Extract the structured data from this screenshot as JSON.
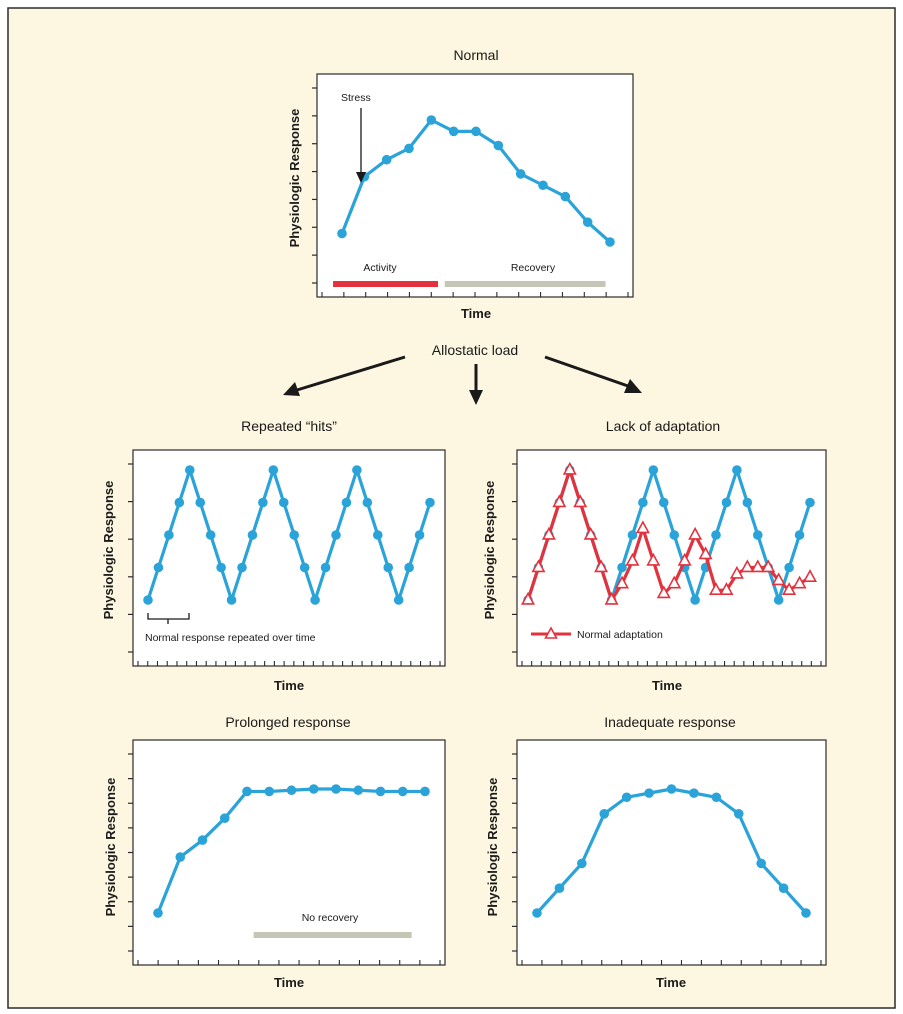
{
  "colors": {
    "background": "#fdf6e0",
    "frame": "#2b2b2b",
    "line_blue": "#2aa3d8",
    "line_red": "#e3323d",
    "bar_activity": "#e3323d",
    "bar_recovery": "#c5c6b6"
  },
  "labels": {
    "allostatic_load": "Allostatic load"
  },
  "chart_data": [
    {
      "id": "normal",
      "type": "line",
      "title": "Normal",
      "xlabel": "Time",
      "ylabel": "Physiologic Response",
      "ylim": [
        0,
        7
      ],
      "xlim": [
        -1,
        13
      ],
      "grid": false,
      "series": [
        {
          "x": [
            0,
            1,
            2,
            3,
            4,
            5,
            6,
            7,
            8,
            9,
            10,
            11,
            12
          ],
          "values": [
            1.0,
            3.0,
            3.6,
            4.0,
            5.0,
            4.6,
            4.6,
            4.1,
            3.1,
            2.7,
            2.3,
            1.4,
            0.7
          ]
        }
      ],
      "annotations": [
        "Stress"
      ],
      "bars": [
        {
          "label": "Activity",
          "from": -0.4,
          "to": 4.3,
          "color": "#e3323d"
        },
        {
          "label": "Recovery",
          "from": 4.6,
          "to": 11.8,
          "color": "#c5c6b6"
        }
      ]
    },
    {
      "id": "repeated-hits",
      "type": "line",
      "title": "Repeated “hits”",
      "xlabel": "Time",
      "ylabel": "Physiologic Response",
      "ylim": [
        0,
        5.5
      ],
      "xlim": [
        -0.6,
        28
      ],
      "grid": false,
      "series": [
        {
          "x": [
            0,
            1,
            2,
            3,
            4,
            5,
            6,
            7,
            8,
            9,
            10,
            11,
            12,
            13,
            14,
            15,
            16,
            17,
            18,
            19,
            20,
            21,
            22,
            23,
            24,
            25,
            26,
            27
          ],
          "values": [
            1,
            2,
            3,
            4,
            5,
            4,
            3,
            2,
            1,
            2,
            3,
            4,
            5,
            4,
            3,
            2,
            1,
            2,
            3,
            4,
            5,
            4,
            3,
            2,
            1,
            2,
            3,
            4
          ]
        }
      ],
      "annotations": [
        "Normal response repeated over time"
      ]
    },
    {
      "id": "lack-of-adaptation",
      "type": "line",
      "title": "Lack of adaptation",
      "xlabel": "Time",
      "ylabel": "Physiologic Response",
      "ylim": [
        0,
        5.5
      ],
      "xlim": [
        -0.6,
        28
      ],
      "grid": false,
      "series": [
        {
          "x": [
            0,
            1,
            2,
            3,
            4,
            5,
            6,
            7,
            8,
            9,
            10,
            11,
            12,
            13,
            14,
            15,
            16,
            17,
            18,
            19,
            20,
            21,
            22,
            23,
            24,
            25,
            26,
            27
          ],
          "values": [
            1,
            2,
            3,
            4,
            5,
            4,
            3,
            2,
            1,
            2,
            3,
            4,
            5,
            4,
            3,
            2,
            1,
            2,
            3,
            4,
            5,
            4,
            3,
            2,
            1,
            2,
            3,
            4
          ]
        },
        {
          "name": "Normal adaptation",
          "x": [
            0,
            1,
            2,
            3,
            4,
            5,
            6,
            7,
            8,
            9,
            10,
            11,
            12,
            13,
            14,
            15,
            16,
            17,
            18,
            19,
            20,
            21,
            22,
            23,
            24,
            25,
            26,
            27
          ],
          "values": [
            1,
            2,
            3,
            4,
            5,
            4,
            3,
            2,
            1,
            1.5,
            2.2,
            3.2,
            2.2,
            1.2,
            1.5,
            2.2,
            3.0,
            2.4,
            1.3,
            1.3,
            1.8,
            2.0,
            2.0,
            2.0,
            1.6,
            1.3,
            1.5,
            1.7
          ]
        }
      ],
      "legend": "bottom-left"
    },
    {
      "id": "prolonged-response",
      "type": "line",
      "title": "Prolonged response",
      "xlabel": "Time",
      "ylabel": "Physiologic Response",
      "ylim": [
        0,
        8
      ],
      "xlim": [
        -1,
        13
      ],
      "grid": false,
      "series": [
        {
          "x": [
            0,
            1,
            2,
            3,
            4,
            5,
            6,
            7,
            8,
            9,
            10,
            11,
            12
          ],
          "values": [
            2.0,
            4.3,
            5.0,
            5.9,
            7.0,
            7.0,
            7.05,
            7.1,
            7.1,
            7.05,
            7.0,
            7.0,
            7.0
          ]
        }
      ],
      "bars": [
        {
          "label": "No recovery",
          "from": 4.3,
          "to": 11.4,
          "color": "#c5c6b6"
        }
      ]
    },
    {
      "id": "inadequate-response",
      "type": "line",
      "title": "Inadequate response",
      "xlabel": "Time",
      "ylabel": "Physiologic Response",
      "ylim": [
        0,
        8
      ],
      "xlim": [
        -1,
        13
      ],
      "grid": false,
      "series": [
        {
          "x": [
            0,
            1,
            2,
            3,
            4,
            5,
            6,
            7,
            8,
            9,
            10,
            11,
            12
          ],
          "values": [
            2.0,
            2.3,
            2.6,
            3.2,
            3.4,
            3.45,
            3.5,
            3.45,
            3.4,
            3.2,
            2.6,
            2.3,
            2.0
          ]
        }
      ]
    }
  ]
}
